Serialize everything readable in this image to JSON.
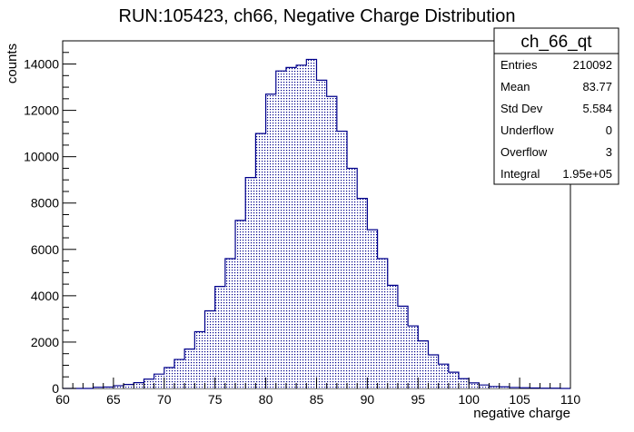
{
  "chart_data": {
    "type": "bar",
    "title": "RUN:105423, ch66, Negative Charge Distribution",
    "xlabel": "negative charge",
    "ylabel": "counts",
    "xlim": [
      60,
      110
    ],
    "ylim": [
      0,
      15000
    ],
    "x_ticks": [
      60,
      65,
      70,
      75,
      80,
      85,
      90,
      95,
      100,
      105,
      110
    ],
    "y_ticks": [
      0,
      2000,
      4000,
      6000,
      8000,
      10000,
      12000,
      14000
    ],
    "bin_width": 1,
    "bins_low_edge": [
      60,
      61,
      62,
      63,
      64,
      65,
      66,
      67,
      68,
      69,
      70,
      71,
      72,
      73,
      74,
      75,
      76,
      77,
      78,
      79,
      80,
      81,
      82,
      83,
      84,
      85,
      86,
      87,
      88,
      89,
      90,
      91,
      92,
      93,
      94,
      95,
      96,
      97,
      98,
      99,
      100,
      101,
      102,
      103,
      104,
      105,
      106,
      107,
      108,
      109
    ],
    "values": [
      0,
      0,
      0,
      50,
      60,
      120,
      170,
      250,
      400,
      620,
      900,
      1250,
      1700,
      2450,
      3350,
      4400,
      5600,
      7250,
      9100,
      11000,
      12700,
      13700,
      13850,
      13950,
      14200,
      13300,
      12600,
      11100,
      9500,
      8200,
      6850,
      5600,
      4450,
      3550,
      2700,
      2050,
      1450,
      1050,
      700,
      420,
      240,
      150,
      80,
      70,
      40,
      30,
      20,
      10,
      10,
      0
    ],
    "series_color": "#00008b",
    "fill_style": "dotted hatch",
    "stats_box": {
      "name": "ch_66_qt",
      "rows": [
        {
          "label": "Entries",
          "value": "210092"
        },
        {
          "label": "Mean",
          "value": "83.77"
        },
        {
          "label": "Std Dev",
          "value": "5.584"
        },
        {
          "label": "Underflow",
          "value": "0"
        },
        {
          "label": "Overflow",
          "value": "3"
        },
        {
          "label": "Integral",
          "value": "1.95e+05"
        }
      ]
    }
  }
}
